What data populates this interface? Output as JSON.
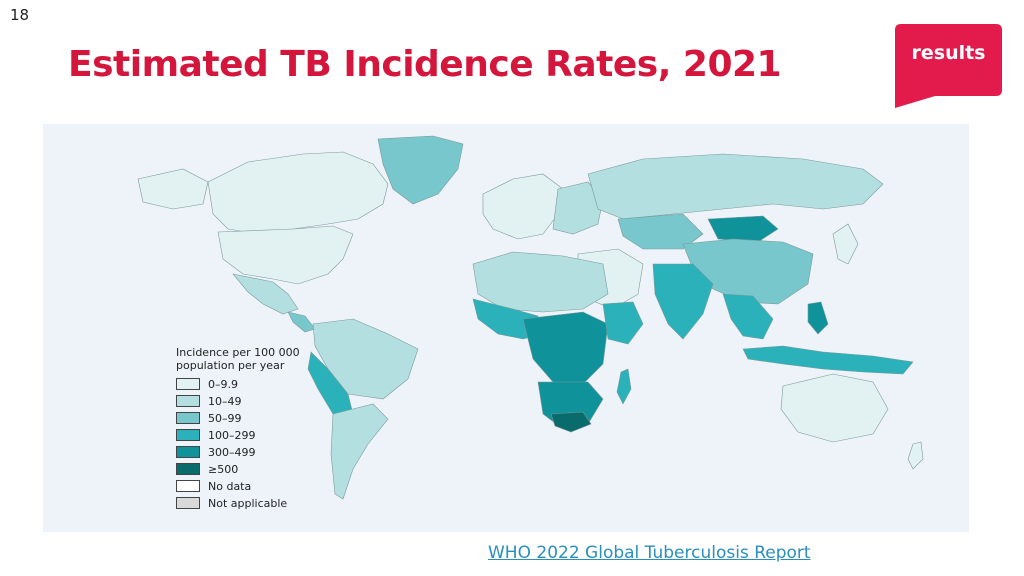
{
  "slide": {
    "number": "18"
  },
  "title": "Estimated TB Incidence Rates, 2021",
  "logo": {
    "text": "results",
    "color": "#e31b4c"
  },
  "map": {
    "colors": {
      "bin_0": "#e2f2f2",
      "bin_1": "#b3dfe0",
      "bin_2": "#77c7cc",
      "bin_3": "#2bb1ba",
      "bin_4": "#0f929a",
      "bin_5": "#0a6b6c",
      "no_data": "#ffffff",
      "not_applicable": "#d9d9d9",
      "ocean": "#eef3fa"
    },
    "legend": {
      "title_line1": "Incidence per 100 000",
      "title_line2": "population per year",
      "items": [
        {
          "label": "0–9.9",
          "color": "#e2f2f2"
        },
        {
          "label": "10–49",
          "color": "#b3dfe0"
        },
        {
          "label": "50–99",
          "color": "#77c7cc"
        },
        {
          "label": "100–299",
          "color": "#2bb1ba"
        },
        {
          "label": "300–499",
          "color": "#0f929a"
        },
        {
          "label": "≥500",
          "color": "#0a6b6c"
        },
        {
          "label": "No data",
          "color": "#ffffff"
        },
        {
          "label": "Not applicable",
          "color": "#d9d9d9"
        }
      ]
    }
  },
  "source": {
    "text": "WHO 2022 Global Tuberculosis Report"
  }
}
